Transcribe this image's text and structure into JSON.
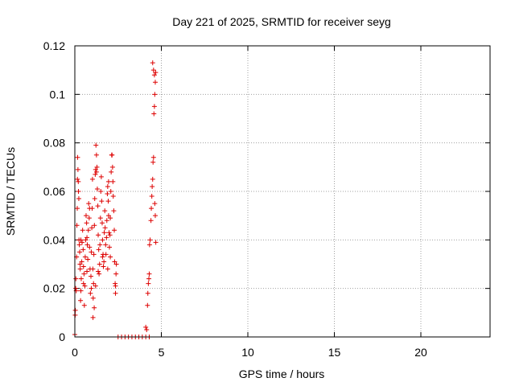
{
  "chart_data": {
    "type": "scatter",
    "title": "Day 221 of 2025, SRMTID for receiver seyg",
    "xlabel": "GPS time / hours",
    "ylabel": "SRMTID / TECUs",
    "xlim": [
      0,
      24
    ],
    "ylim": [
      0,
      0.12
    ],
    "xticks": [
      0,
      5,
      10,
      15,
      20
    ],
    "yticks": [
      0,
      0.02,
      0.04,
      0.06,
      0.08,
      0.1,
      0.12
    ],
    "xtick_labels": [
      "0",
      "5",
      "10",
      "15",
      "20"
    ],
    "ytick_labels": [
      "0",
      "0.02",
      "0.04",
      "0.06",
      "0.08",
      "0.1",
      "0.12"
    ],
    "grid": true,
    "marker": "+",
    "color": "#dd0000",
    "series": [
      {
        "name": "SRMTID",
        "points": [
          [
            0.0,
            0.001
          ],
          [
            0.02,
            0.009
          ],
          [
            0.03,
            0.011
          ],
          [
            0.05,
            0.02
          ],
          [
            0.06,
            0.024
          ],
          [
            0.08,
            0.019
          ],
          [
            0.1,
            0.033
          ],
          [
            0.12,
            0.046
          ],
          [
            0.14,
            0.053
          ],
          [
            0.15,
            0.065
          ],
          [
            0.16,
            0.074
          ],
          [
            0.18,
            0.069
          ],
          [
            0.2,
            0.064
          ],
          [
            0.21,
            0.06
          ],
          [
            0.23,
            0.057
          ],
          [
            0.24,
            0.04
          ],
          [
            0.26,
            0.038
          ],
          [
            0.28,
            0.035
          ],
          [
            0.3,
            0.03
          ],
          [
            0.31,
            0.028
          ],
          [
            0.33,
            0.015
          ],
          [
            0.35,
            0.019
          ],
          [
            0.37,
            0.024
          ],
          [
            0.4,
            0.031
          ],
          [
            0.42,
            0.039
          ],
          [
            0.45,
            0.044
          ],
          [
            0.48,
            0.036
          ],
          [
            0.5,
            0.029
          ],
          [
            0.53,
            0.026
          ],
          [
            0.55,
            0.013
          ],
          [
            0.58,
            0.021
          ],
          [
            0.6,
            0.033
          ],
          [
            0.63,
            0.04
          ],
          [
            0.65,
            0.05
          ],
          [
            0.68,
            0.047
          ],
          [
            0.7,
            0.041
          ],
          [
            0.72,
            0.038
          ],
          [
            0.75,
            0.032
          ],
          [
            0.78,
            0.044
          ],
          [
            0.8,
            0.055
          ],
          [
            0.83,
            0.049
          ],
          [
            0.85,
            0.037
          ],
          [
            0.88,
            0.028
          ],
          [
            0.9,
            0.018
          ],
          [
            0.93,
            0.025
          ],
          [
            0.95,
            0.035
          ],
          [
            0.98,
            0.045
          ],
          [
            1.0,
            0.053
          ],
          [
            1.02,
            0.065
          ],
          [
            1.04,
            0.028
          ],
          [
            1.06,
            0.016
          ],
          [
            1.08,
            0.022
          ],
          [
            1.1,
            0.034
          ],
          [
            1.13,
            0.046
          ],
          [
            1.15,
            0.057
          ],
          [
            1.18,
            0.067
          ],
          [
            1.2,
            0.069
          ],
          [
            1.22,
            0.079
          ],
          [
            1.25,
            0.075
          ],
          [
            1.28,
            0.07
          ],
          [
            1.3,
            0.061
          ],
          [
            1.33,
            0.054
          ],
          [
            1.35,
            0.042
          ],
          [
            1.38,
            0.036
          ],
          [
            1.4,
            0.026
          ],
          [
            1.43,
            0.03
          ],
          [
            1.45,
            0.038
          ],
          [
            1.48,
            0.049
          ],
          [
            1.5,
            0.06
          ],
          [
            1.53,
            0.066
          ],
          [
            1.55,
            0.056
          ],
          [
            1.58,
            0.047
          ],
          [
            1.6,
            0.04
          ],
          [
            1.63,
            0.034
          ],
          [
            1.65,
            0.029
          ],
          [
            1.68,
            0.031
          ],
          [
            1.7,
            0.043
          ],
          [
            1.73,
            0.052
          ],
          [
            1.75,
            0.045
          ],
          [
            1.78,
            0.038
          ],
          [
            1.8,
            0.034
          ],
          [
            1.83,
            0.041
          ],
          [
            1.85,
            0.048
          ],
          [
            1.88,
            0.059
          ],
          [
            1.9,
            0.062
          ],
          [
            1.93,
            0.056
          ],
          [
            1.95,
            0.05
          ],
          [
            1.98,
            0.043
          ],
          [
            2.0,
            0.037
          ],
          [
            2.03,
            0.042
          ],
          [
            2.05,
            0.049
          ],
          [
            2.08,
            0.06
          ],
          [
            2.1,
            0.068
          ],
          [
            2.13,
            0.075
          ],
          [
            2.15,
            0.075
          ],
          [
            2.18,
            0.07
          ],
          [
            2.2,
            0.064
          ],
          [
            2.22,
            0.058
          ],
          [
            2.25,
            0.052
          ],
          [
            2.28,
            0.044
          ],
          [
            2.3,
            0.031
          ],
          [
            2.33,
            0.022
          ],
          [
            2.35,
            0.021
          ],
          [
            2.38,
            0.026
          ],
          [
            2.4,
            0.03
          ],
          [
            0.5,
            0.022
          ],
          [
            0.7,
            0.027
          ],
          [
            0.95,
            0.02
          ],
          [
            1.05,
            0.008
          ],
          [
            1.12,
            0.012
          ],
          [
            1.2,
            0.021
          ],
          [
            1.35,
            0.027
          ],
          [
            1.6,
            0.033
          ],
          [
            1.9,
            0.028
          ],
          [
            2.05,
            0.033
          ],
          [
            2.35,
            0.018
          ],
          [
            1.95,
            0.064
          ],
          [
            1.25,
            0.068
          ],
          [
            0.35,
            0.04
          ],
          [
            0.85,
            0.053
          ],
          [
            2.5,
            0.0
          ],
          [
            2.7,
            0.0
          ],
          [
            2.9,
            0.0
          ],
          [
            3.1,
            0.0
          ],
          [
            3.3,
            0.0
          ],
          [
            3.5,
            0.0
          ],
          [
            3.7,
            0.0
          ],
          [
            3.9,
            0.0
          ],
          [
            4.1,
            0.0
          ],
          [
            4.3,
            0.0
          ],
          [
            4.1,
            0.004
          ],
          [
            4.15,
            0.003
          ],
          [
            4.2,
            0.013
          ],
          [
            4.22,
            0.018
          ],
          [
            4.25,
            0.022
          ],
          [
            4.28,
            0.024
          ],
          [
            4.3,
            0.026
          ],
          [
            4.32,
            0.038
          ],
          [
            4.35,
            0.04
          ],
          [
            4.4,
            0.048
          ],
          [
            4.42,
            0.053
          ],
          [
            4.45,
            0.058
          ],
          [
            4.47,
            0.062
          ],
          [
            4.5,
            0.065
          ],
          [
            4.52,
            0.072
          ],
          [
            4.55,
            0.074
          ],
          [
            4.57,
            0.092
          ],
          [
            4.6,
            0.095
          ],
          [
            4.62,
            0.1
          ],
          [
            4.65,
            0.105
          ],
          [
            4.67,
            0.109
          ],
          [
            4.5,
            0.113
          ],
          [
            4.55,
            0.11
          ],
          [
            4.6,
            0.108
          ],
          [
            4.62,
            0.055
          ],
          [
            4.65,
            0.05
          ],
          [
            4.68,
            0.039
          ]
        ]
      }
    ]
  }
}
